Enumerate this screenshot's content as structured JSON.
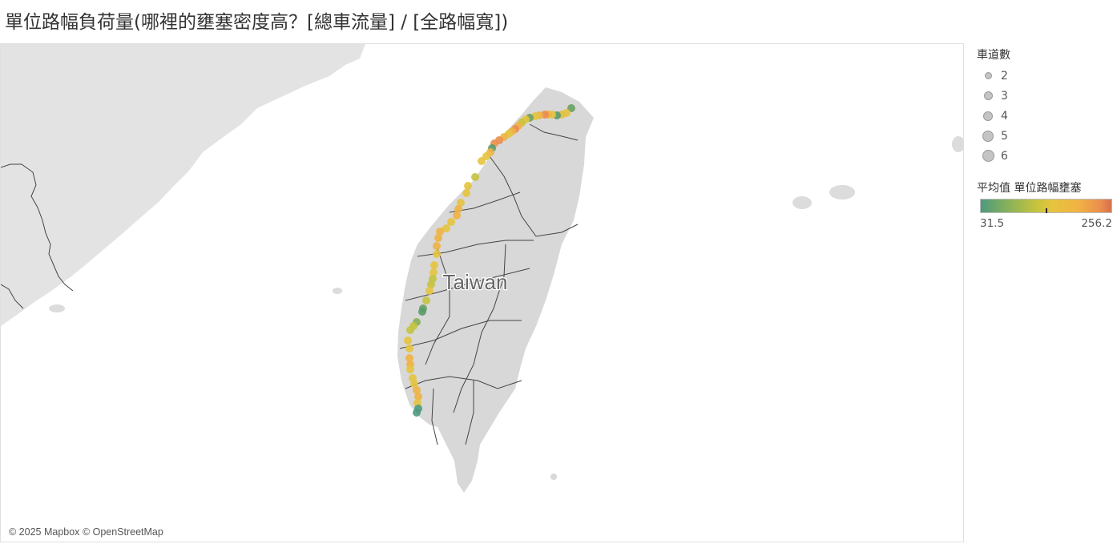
{
  "title": "單位路幅負荷量(哪裡的壅塞密度高？[總車流量] / [全路幅寬])",
  "map": {
    "place_label": "Taiwan",
    "attribution": "© 2025 Mapbox © OpenStreetMap",
    "colors": {
      "ocean": "#ffffff",
      "land": "#dcdcdc",
      "land_mainland": "#e3e3e3",
      "borders": "#444444",
      "points_low": "#4e9a7e",
      "points_mid": "#e6c43f",
      "points_high": "#d6704e"
    }
  },
  "legend": {
    "size_title": "車道數",
    "size_items": [
      {
        "label": "2"
      },
      {
        "label": "3"
      },
      {
        "label": "4"
      },
      {
        "label": "5"
      },
      {
        "label": "6"
      }
    ],
    "color_title": "平均值 單位路幅壅塞",
    "color_min": "31.5",
    "color_max": "256.2"
  }
}
